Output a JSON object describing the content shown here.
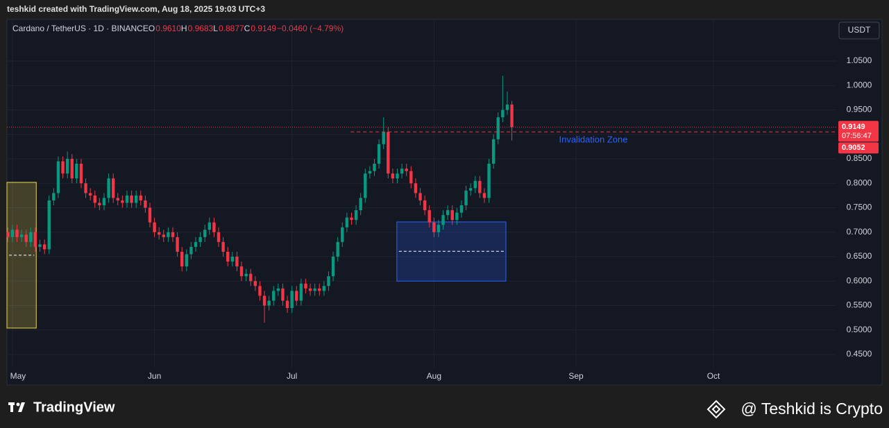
{
  "header": {
    "credit": "teshkid created with TradingView.com, Aug 18, 2025 19:03 UTC+3",
    "currency_button": "USDT"
  },
  "footer": {
    "brand": "TradingView",
    "watermark": "@ Teshkid is Crypto"
  },
  "chart_data": {
    "type": "candlestick",
    "symbol": "Cardano / TetherUS · 1D · BINANCE",
    "ohlc_legend": [
      {
        "key": "O",
        "text": "0.9610"
      },
      {
        "key": "H",
        "text": "0.9683"
      },
      {
        "key": "L",
        "text": "0.8877"
      },
      {
        "key": "C",
        "text": "0.9149"
      }
    ],
    "change": "−0.0460 (−4.79%)",
    "up_color": "#089981",
    "down_color": "#f23645",
    "open": [
      0.7,
      0.69,
      0.705,
      0.69,
      0.695,
      0.68,
      0.7,
      0.67,
      0.675,
      0.665,
      0.765,
      0.78,
      0.845,
      0.82,
      0.85,
      0.81,
      0.84,
      0.8,
      0.78,
      0.775,
      0.76,
      0.755,
      0.77,
      0.81,
      0.77,
      0.765,
      0.76,
      0.775,
      0.76,
      0.775,
      0.765,
      0.75,
      0.72,
      0.7,
      0.695,
      0.69,
      0.7,
      0.69,
      0.66,
      0.63,
      0.655,
      0.67,
      0.68,
      0.69,
      0.705,
      0.72,
      0.7,
      0.68,
      0.66,
      0.64,
      0.65,
      0.63,
      0.61,
      0.615,
      0.6,
      0.59,
      0.57,
      0.55,
      0.56,
      0.58,
      0.585,
      0.56,
      0.545,
      0.58,
      0.56,
      0.595,
      0.585,
      0.58,
      0.585,
      0.58,
      0.59,
      0.61,
      0.65,
      0.68,
      0.71,
      0.73,
      0.725,
      0.745,
      0.77,
      0.82,
      0.825,
      0.84,
      0.88,
      0.905,
      0.82,
      0.81,
      0.82,
      0.83,
      0.825,
      0.8,
      0.78,
      0.765,
      0.745,
      0.72,
      0.7,
      0.715,
      0.735,
      0.745,
      0.725,
      0.74,
      0.755,
      0.785,
      0.79,
      0.805,
      0.78,
      0.77,
      0.84,
      0.89,
      0.935,
      0.95,
      0.961
    ],
    "high": [
      0.71,
      0.715,
      0.715,
      0.705,
      0.705,
      0.71,
      0.71,
      0.685,
      0.685,
      0.775,
      0.79,
      0.855,
      0.855,
      0.865,
      0.86,
      0.85,
      0.85,
      0.81,
      0.79,
      0.785,
      0.77,
      0.78,
      0.82,
      0.82,
      0.78,
      0.775,
      0.785,
      0.785,
      0.785,
      0.785,
      0.775,
      0.76,
      0.73,
      0.71,
      0.705,
      0.71,
      0.71,
      0.7,
      0.67,
      0.665,
      0.68,
      0.69,
      0.7,
      0.715,
      0.73,
      0.73,
      0.71,
      0.69,
      0.67,
      0.66,
      0.66,
      0.64,
      0.625,
      0.625,
      0.61,
      0.6,
      0.58,
      0.57,
      0.59,
      0.595,
      0.595,
      0.57,
      0.59,
      0.59,
      0.605,
      0.605,
      0.595,
      0.595,
      0.595,
      0.6,
      0.62,
      0.66,
      0.69,
      0.72,
      0.74,
      0.74,
      0.755,
      0.78,
      0.83,
      0.835,
      0.85,
      0.89,
      0.935,
      0.915,
      0.83,
      0.83,
      0.84,
      0.84,
      0.835,
      0.81,
      0.79,
      0.775,
      0.755,
      0.73,
      0.725,
      0.745,
      0.755,
      0.755,
      0.75,
      0.765,
      0.795,
      0.8,
      0.815,
      0.815,
      0.79,
      0.85,
      0.9,
      0.945,
      1.02,
      0.988,
      0.9683
    ],
    "low": [
      0.68,
      0.68,
      0.68,
      0.68,
      0.67,
      0.67,
      0.66,
      0.66,
      0.655,
      0.655,
      0.755,
      0.77,
      0.81,
      0.81,
      0.8,
      0.8,
      0.79,
      0.77,
      0.765,
      0.75,
      0.745,
      0.745,
      0.76,
      0.76,
      0.755,
      0.75,
      0.75,
      0.75,
      0.75,
      0.755,
      0.74,
      0.71,
      0.69,
      0.685,
      0.68,
      0.68,
      0.68,
      0.65,
      0.62,
      0.62,
      0.645,
      0.66,
      0.67,
      0.68,
      0.695,
      0.69,
      0.67,
      0.65,
      0.63,
      0.63,
      0.62,
      0.6,
      0.6,
      0.59,
      0.58,
      0.56,
      0.515,
      0.54,
      0.55,
      0.57,
      0.55,
      0.535,
      0.535,
      0.55,
      0.55,
      0.575,
      0.57,
      0.57,
      0.57,
      0.57,
      0.58,
      0.6,
      0.64,
      0.67,
      0.7,
      0.715,
      0.715,
      0.735,
      0.76,
      0.81,
      0.815,
      0.83,
      0.87,
      0.81,
      0.8,
      0.8,
      0.81,
      0.815,
      0.79,
      0.77,
      0.755,
      0.735,
      0.71,
      0.69,
      0.69,
      0.705,
      0.725,
      0.715,
      0.715,
      0.73,
      0.745,
      0.775,
      0.78,
      0.77,
      0.76,
      0.76,
      0.83,
      0.88,
      0.925,
      0.94,
      0.8877
    ],
    "close": [
      0.69,
      0.705,
      0.69,
      0.695,
      0.68,
      0.7,
      0.67,
      0.675,
      0.665,
      0.765,
      0.78,
      0.845,
      0.82,
      0.85,
      0.81,
      0.84,
      0.8,
      0.78,
      0.775,
      0.76,
      0.755,
      0.77,
      0.81,
      0.77,
      0.765,
      0.76,
      0.775,
      0.76,
      0.775,
      0.765,
      0.75,
      0.72,
      0.7,
      0.695,
      0.69,
      0.7,
      0.69,
      0.66,
      0.63,
      0.655,
      0.67,
      0.68,
      0.69,
      0.705,
      0.72,
      0.7,
      0.68,
      0.66,
      0.64,
      0.65,
      0.63,
      0.61,
      0.615,
      0.6,
      0.59,
      0.57,
      0.55,
      0.56,
      0.58,
      0.585,
      0.56,
      0.545,
      0.58,
      0.56,
      0.595,
      0.585,
      0.58,
      0.585,
      0.58,
      0.59,
      0.61,
      0.65,
      0.68,
      0.71,
      0.73,
      0.725,
      0.745,
      0.77,
      0.82,
      0.825,
      0.84,
      0.88,
      0.905,
      0.82,
      0.81,
      0.82,
      0.83,
      0.825,
      0.8,
      0.78,
      0.765,
      0.745,
      0.72,
      0.7,
      0.715,
      0.735,
      0.745,
      0.725,
      0.74,
      0.755,
      0.785,
      0.79,
      0.805,
      0.78,
      0.77,
      0.84,
      0.89,
      0.935,
      0.95,
      0.961,
      0.9149
    ],
    "xlim": [
      -0.2,
      180.8
    ],
    "xticks": [
      {
        "value": 1,
        "label": "May"
      },
      {
        "value": 32,
        "label": "Jun"
      },
      {
        "value": 62,
        "label": "Jul"
      },
      {
        "value": 93,
        "label": "Aug"
      },
      {
        "value": 124,
        "label": "Sep"
      },
      {
        "value": 154,
        "label": "Oct"
      }
    ],
    "ylim": [
      0.3876,
      1.1351
    ],
    "yticks": [
      {
        "value": 0.45,
        "label": "0.4500"
      },
      {
        "value": 0.5,
        "label": "0.5000"
      },
      {
        "value": 0.55,
        "label": "0.5500"
      },
      {
        "value": 0.6,
        "label": "0.6000"
      },
      {
        "value": 0.65,
        "label": "0.6500"
      },
      {
        "value": 0.7,
        "label": "0.7000"
      },
      {
        "value": 0.75,
        "label": "0.7500"
      },
      {
        "value": 0.8,
        "label": "0.8000"
      },
      {
        "value": 0.85,
        "label": "0.8500"
      },
      {
        "value": 0.9,
        "label": "0.9000"
      },
      {
        "value": 0.95,
        "label": "0.9500"
      },
      {
        "value": 1.0,
        "label": "1.0000"
      },
      {
        "value": 1.05,
        "label": "1.0500"
      }
    ],
    "grid": true,
    "last_price": {
      "value": 0.9149,
      "label": "0.9149",
      "countdown": "07:56:47",
      "color": "#f23645"
    },
    "invalidation": {
      "value": 0.9052,
      "label": "0.9052",
      "text": "Invalidation Zone",
      "start": 74.8,
      "color": "#f23645",
      "text_color": "#2962ff"
    },
    "zones": [
      {
        "start": -0.2,
        "end": 6.2,
        "top": 0.802,
        "bottom": 0.504,
        "mid": 0.653,
        "color": "#f2d54a"
      },
      {
        "start": 84.9,
        "end": 108.7,
        "top": 0.721,
        "bottom": 0.6,
        "mid": 0.661,
        "color": "#2962ff"
      }
    ]
  }
}
